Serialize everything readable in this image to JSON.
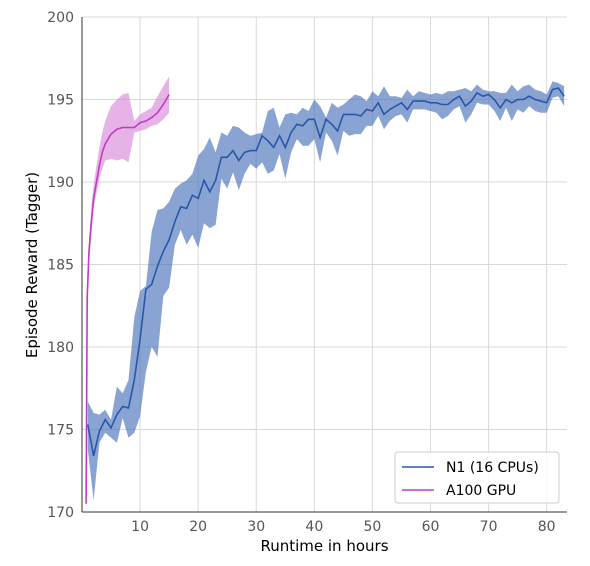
{
  "chart_data": {
    "type": "line",
    "xlabel": "Runtime in hours",
    "ylabel": "Episode Reward (Tagger)",
    "xlim": [
      0,
      83.5
    ],
    "ylim": [
      170,
      200
    ],
    "xticks": [
      10,
      20,
      30,
      40,
      50,
      60,
      70,
      80
    ],
    "yticks": [
      170,
      175,
      180,
      185,
      190,
      195,
      200
    ],
    "grid": true,
    "legend_position": "lower-right",
    "series": [
      {
        "name": "N1 (16 CPUs)",
        "color": "#2b56a8",
        "band_color": "#4a73bb",
        "x": [
          1,
          2,
          3,
          4,
          5,
          6,
          7,
          8,
          9,
          10,
          11,
          12,
          13,
          14,
          15,
          16,
          17,
          18,
          19,
          20,
          21,
          22,
          23,
          24,
          25,
          26,
          27,
          28,
          29,
          30,
          31,
          32,
          33,
          34,
          35,
          36,
          37,
          38,
          39,
          40,
          41,
          42,
          43,
          44,
          45,
          46,
          47,
          48,
          49,
          50,
          51,
          52,
          53,
          54,
          55,
          56,
          57,
          58,
          59,
          60,
          61,
          62,
          63,
          64,
          65,
          66,
          67,
          68,
          69,
          70,
          71,
          72,
          73,
          74,
          75,
          76,
          77,
          78,
          79,
          80,
          81,
          82,
          83
        ],
        "y": [
          175.3,
          173.4,
          174.9,
          175.6,
          175.1,
          175.9,
          176.4,
          176.3,
          178.0,
          180.5,
          183.5,
          183.8,
          184.9,
          185.8,
          186.5,
          187.6,
          188.5,
          188.4,
          189.2,
          189.0,
          190.1,
          189.4,
          190.1,
          191.5,
          191.5,
          191.9,
          191.3,
          191.8,
          191.9,
          191.9,
          192.8,
          192.5,
          192.1,
          192.8,
          192.1,
          193.0,
          193.5,
          193.4,
          193.8,
          193.8,
          192.7,
          193.8,
          193.5,
          193.1,
          194.1,
          194.1,
          194.1,
          194.0,
          194.4,
          194.3,
          194.8,
          194.1,
          194.4,
          194.6,
          194.8,
          194.4,
          194.9,
          194.9,
          194.9,
          194.8,
          194.8,
          194.7,
          194.7,
          195.0,
          195.2,
          194.6,
          194.9,
          195.4,
          195.2,
          195.3,
          195.0,
          194.5,
          195.0,
          194.8,
          195.0,
          195.0,
          195.2,
          195.0,
          194.9,
          194.8,
          195.6,
          195.7,
          195.2
        ],
        "upper": [
          176.7,
          176.0,
          175.9,
          176.2,
          175.6,
          177.6,
          177.2,
          178.0,
          181.8,
          183.4,
          183.7,
          187.0,
          188.3,
          188.4,
          188.8,
          189.6,
          189.9,
          190.1,
          190.5,
          191.6,
          192.0,
          192.7,
          191.8,
          193.0,
          192.8,
          193.4,
          193.3,
          193.0,
          192.8,
          192.9,
          193.0,
          194.3,
          194.5,
          193.3,
          194.1,
          194.2,
          194.1,
          194.5,
          194.3,
          195.0,
          194.6,
          193.9,
          194.8,
          194.5,
          194.7,
          195.0,
          195.3,
          195.2,
          194.9,
          195.5,
          195.2,
          195.8,
          195.2,
          195.2,
          195.1,
          195.6,
          195.2,
          195.5,
          195.4,
          195.3,
          195.4,
          195.3,
          195.5,
          195.5,
          195.6,
          195.7,
          195.5,
          195.9,
          195.6,
          195.5,
          195.5,
          195.4,
          195.4,
          195.9,
          195.5,
          195.8,
          195.9,
          195.6,
          195.5,
          195.3,
          196.1,
          196.0,
          195.8
        ],
        "lower": [
          173.8,
          170.7,
          174.2,
          174.8,
          174.5,
          174.2,
          175.7,
          174.5,
          174.8,
          175.8,
          178.5,
          180.0,
          179.4,
          183.1,
          183.6,
          186.2,
          187.1,
          186.2,
          186.8,
          186.0,
          187.5,
          187.2,
          187.4,
          190.2,
          189.6,
          190.6,
          189.5,
          190.5,
          191.1,
          190.8,
          191.2,
          190.5,
          190.7,
          191.7,
          190.2,
          191.8,
          192.6,
          192.2,
          192.2,
          192.6,
          191.2,
          193.0,
          192.5,
          191.6,
          193.1,
          192.8,
          192.9,
          192.9,
          193.4,
          193.4,
          194.0,
          193.2,
          193.7,
          194.0,
          194.1,
          193.6,
          194.4,
          194.4,
          194.4,
          194.3,
          194.2,
          193.8,
          194.0,
          194.4,
          194.6,
          193.6,
          194.1,
          194.8,
          194.7,
          194.7,
          194.3,
          193.7,
          194.5,
          193.7,
          194.4,
          194.2,
          194.6,
          194.3,
          194.2,
          194.2,
          195.1,
          195.2,
          194.6
        ]
      },
      {
        "name": "A100 GPU",
        "color": "#c03bc4",
        "band_color": "#d98ad9",
        "x": [
          0.7,
          0.9,
          1.2,
          1.6,
          2.0,
          2.5,
          3.0,
          3.5,
          4.0,
          5.0,
          6.0,
          7.0,
          8.0,
          9.0,
          10.0,
          11.0,
          12.0,
          13.0,
          14.0,
          15.0
        ],
        "y": [
          170.5,
          183.0,
          185.8,
          187.5,
          189.0,
          190.0,
          191.0,
          191.8,
          192.3,
          192.9,
          193.2,
          193.3,
          193.3,
          193.3,
          193.6,
          193.7,
          193.9,
          194.2,
          194.7,
          195.3
        ],
        "upper": [
          171.5,
          184.2,
          186.6,
          188.4,
          189.8,
          191.0,
          192.1,
          193.0,
          193.7,
          194.6,
          195.0,
          195.3,
          195.4,
          193.7,
          194.1,
          194.3,
          194.5,
          195.2,
          195.8,
          196.4
        ],
        "lower": [
          169.8,
          182.2,
          185.1,
          186.8,
          188.4,
          189.3,
          190.2,
          190.8,
          191.3,
          191.4,
          191.3,
          191.4,
          191.2,
          193.0,
          193.1,
          193.2,
          193.4,
          193.5,
          193.8,
          194.2
        ]
      }
    ]
  }
}
